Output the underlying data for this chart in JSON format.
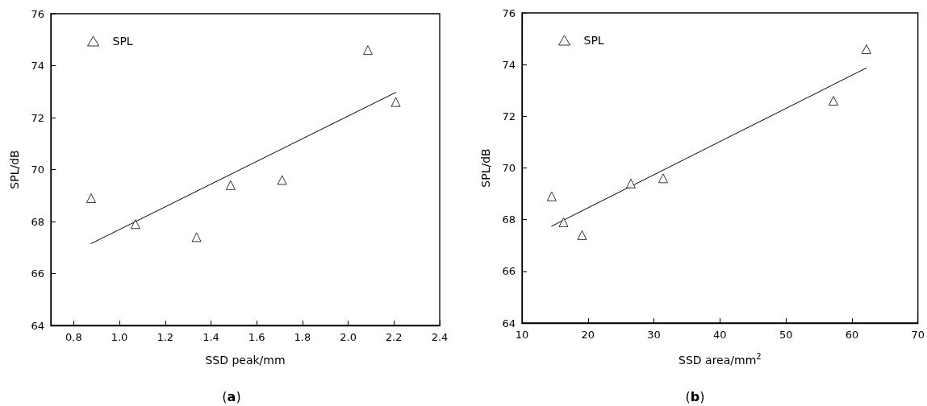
{
  "chart_data": [
    {
      "type": "scatter",
      "xlabel": "SSD peak/mm",
      "ylabel": "SPL/dB",
      "annotations": [
        "(a)"
      ],
      "xlim": [
        0.7,
        2.4
      ],
      "xticks": [
        0.8,
        {
          "value": 1.0,
          "label": "1.0"
        },
        1.2,
        1.4,
        1.6,
        1.8,
        {
          "value": 2.0,
          "label": "2.0"
        },
        2.2,
        2.4
      ],
      "ylim": [
        64,
        76
      ],
      "yticks": [
        64,
        66,
        68,
        70,
        72,
        74,
        76
      ],
      "grid": false,
      "legend": "top left",
      "series": [
        {
          "name": "SPL",
          "marker": "triangle",
          "color": "#000000",
          "x": [
            0.876,
            1.07,
            1.337,
            1.486,
            1.711,
            2.086,
            2.208
          ],
          "values": [
            68.9,
            67.9,
            67.4,
            69.4,
            69.6,
            74.6,
            72.6
          ]
        },
        {
          "type": "line",
          "marker": "none",
          "color": "#000000",
          "x": [
            0.876,
            2.208
          ],
          "values": [
            67.15,
            72.97
          ]
        }
      ]
    },
    {
      "type": "scatter",
      "xlabel": "SSD area/mm$^{2}$",
      "ylabel": "SPL/dB",
      "annotations": [
        "(b)"
      ],
      "xlim": [
        10,
        70
      ],
      "xticks": [
        10,
        20,
        30,
        40,
        50,
        60,
        70
      ],
      "ylim": [
        64,
        76
      ],
      "yticks": [
        64,
        66,
        68,
        70,
        72,
        74,
        76
      ],
      "grid": false,
      "legend": "top left",
      "series": [
        {
          "name": "SPL",
          "marker": "triangle",
          "color": "#000000",
          "x": [
            14.5,
            16.3,
            19.1,
            26.5,
            31.4,
            57.2,
            62.2
          ],
          "values": [
            68.9,
            67.9,
            67.4,
            69.4,
            69.6,
            72.6,
            74.6
          ]
        },
        {
          "type": "line",
          "marker": "none",
          "color": "#000000",
          "x": [
            14.5,
            62.2
          ],
          "values": [
            67.75,
            73.87
          ]
        }
      ]
    }
  ]
}
